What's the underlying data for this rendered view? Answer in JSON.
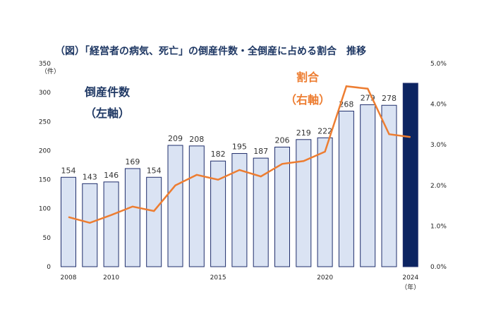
{
  "chart_data": {
    "type": "bar+line",
    "title": "（図）「経営者の病気、死亡」の倒産件数・全倒産に占める割合　推移",
    "categories": [
      2008,
      2009,
      2010,
      2011,
      2012,
      2013,
      2014,
      2015,
      2016,
      2017,
      2018,
      2019,
      2020,
      2021,
      2022,
      2023,
      2024
    ],
    "x_tick_labels": [
      "2008",
      "2010",
      "2015",
      "2020",
      "2024"
    ],
    "x_unit": "（年）",
    "left_axis": {
      "unit": "（件）",
      "ylim": [
        0,
        350
      ],
      "ticks": [
        0,
        50,
        100,
        150,
        200,
        250,
        300,
        350
      ]
    },
    "right_axis": {
      "ylim": [
        0,
        5
      ],
      "ticks": [
        "0.0%",
        "1.0%",
        "2.0%",
        "3.0%",
        "4.0%",
        "5.0%"
      ]
    },
    "series": [
      {
        "name": "倒産件数（左軸）",
        "type": "bar",
        "axis": "left",
        "values": [
          154,
          143,
          146,
          169,
          154,
          209,
          208,
          182,
          195,
          187,
          206,
          219,
          222,
          268,
          279,
          278,
          316
        ],
        "labels": [
          "154",
          "143",
          "146",
          "169",
          "154",
          "209",
          "208",
          "182",
          "195",
          "187",
          "206",
          "219",
          "222",
          "268",
          "279",
          "278",
          ""
        ],
        "color": "#dae3f3",
        "stroke": "#1f2d6b",
        "highlight_color": "#0c2461"
      },
      {
        "name": "割合（右軸）",
        "type": "line",
        "axis": "right",
        "values": [
          1.22,
          1.08,
          1.27,
          1.48,
          1.37,
          2.0,
          2.26,
          2.14,
          2.38,
          2.22,
          2.53,
          2.6,
          2.83,
          4.44,
          4.38,
          3.26,
          3.19
        ],
        "color": "#ed7d31"
      }
    ],
    "annotations": {
      "bar_label_1": "倒産件数",
      "bar_label_2": "（左軸）",
      "line_label_1": "割合",
      "line_label_2": "（右軸）"
    },
    "grid": false
  }
}
